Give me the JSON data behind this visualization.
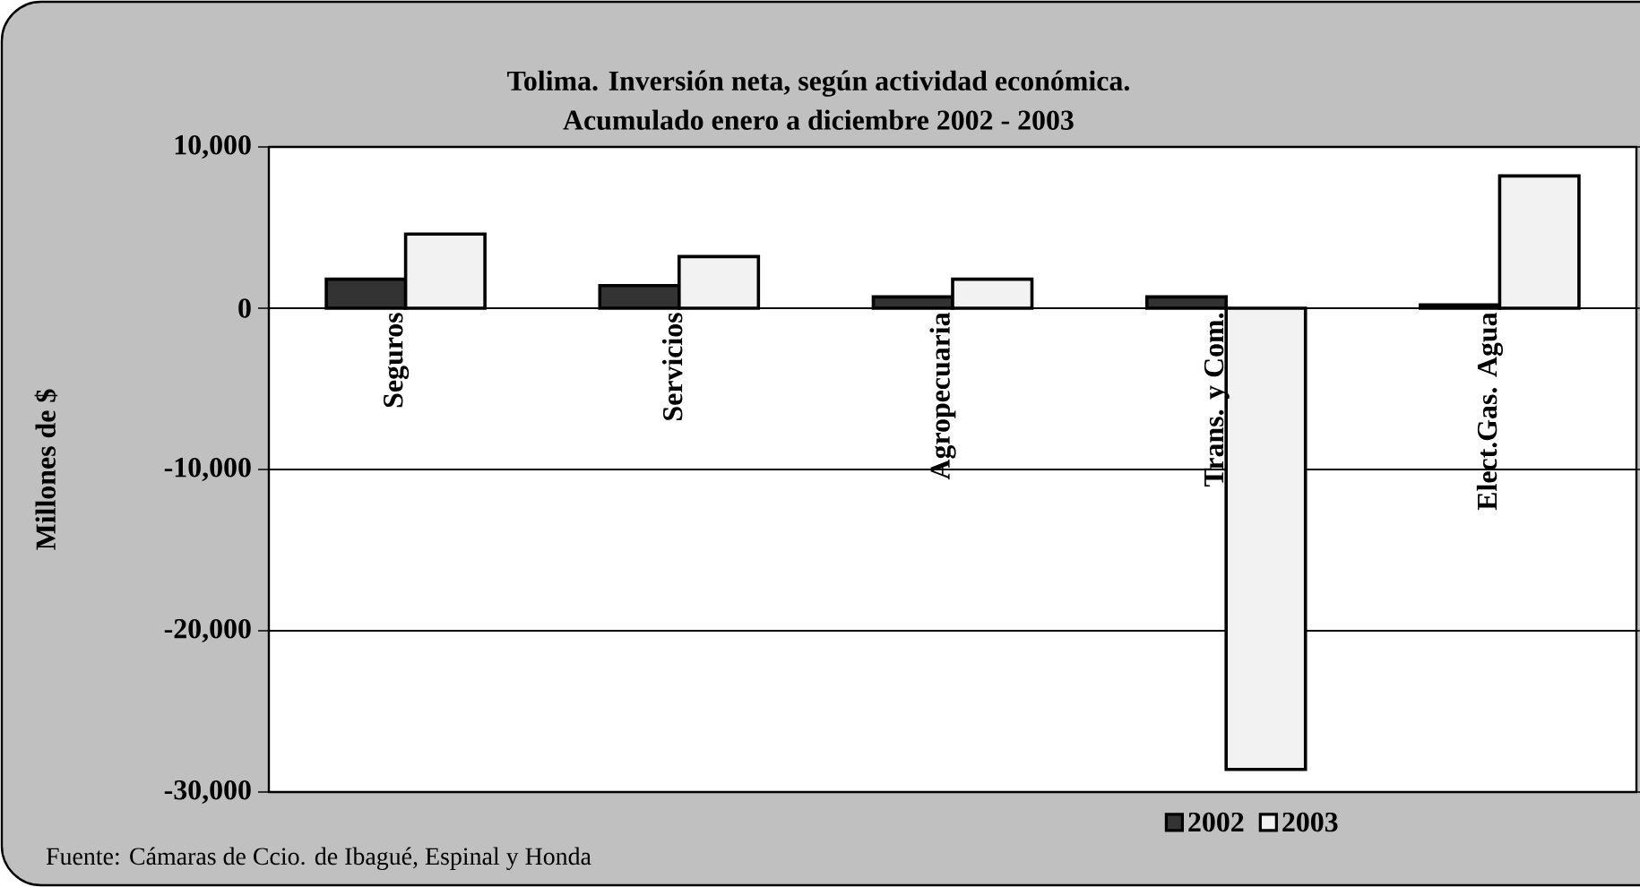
{
  "chart_data": {
    "type": "bar",
    "title": "Tolima. Inversión neta, según actividad económica.\nAcumulado enero a diciembre 2002 - 2003",
    "ylabel": "Millones de $",
    "categories": [
      "Seguros",
      "Servicios",
      "Agropecuaria",
      "Trans. y Com.",
      "Elect.Gas. Agua"
    ],
    "series": [
      {
        "name": "2002",
        "color": "#333333",
        "values": [
          1800,
          1400,
          700,
          700,
          200
        ]
      },
      {
        "name": "2003",
        "color": "#f2f2f2",
        "values": [
          4600,
          3200,
          1800,
          -28600,
          8200
        ]
      }
    ],
    "ylim": [
      -30000,
      10000
    ],
    "yticks": [
      {
        "value": -30000,
        "label": "-30,000"
      },
      {
        "value": -20000,
        "label": "-20,000"
      },
      {
        "value": -10000,
        "label": "-10,000"
      },
      {
        "value": 0,
        "label": "0"
      },
      {
        "value": 10000,
        "label": "10,000"
      }
    ],
    "grid": "y",
    "legend": "bottom",
    "annotations": [
      "Fuente: Cámaras de Ccio. de Ibagué, Espinal y Honda"
    ]
  }
}
